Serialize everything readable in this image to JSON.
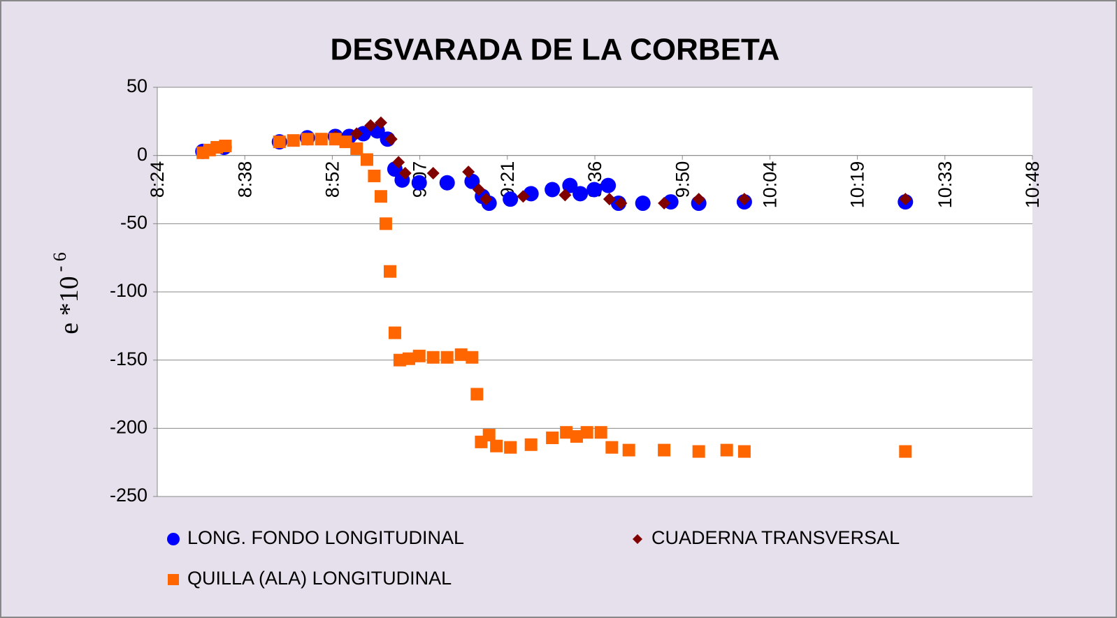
{
  "chart_data": {
    "type": "scatter",
    "title": "DESVARADA DE LA CORBETA",
    "y_label": "e *10",
    "y_label_superscript": "- 6",
    "xlim": [
      504,
      648
    ],
    "xticks": [
      {
        "value": 504,
        "label": "8:24"
      },
      {
        "value": 518.4,
        "label": "8:38"
      },
      {
        "value": 532.8,
        "label": "8:52"
      },
      {
        "value": 547.2,
        "label": "9:07"
      },
      {
        "value": 561.6,
        "label": "9:21"
      },
      {
        "value": 576,
        "label": "9:36"
      },
      {
        "value": 590.4,
        "label": "9:50"
      },
      {
        "value": 604.8,
        "label": "10:04"
      },
      {
        "value": 619.2,
        "label": "10:19"
      },
      {
        "value": 633.6,
        "label": "10:33"
      },
      {
        "value": 648,
        "label": "10:48"
      }
    ],
    "ylim": [
      -250,
      50
    ],
    "yticks": [
      -250,
      -200,
      -150,
      -100,
      -50,
      0,
      50
    ],
    "grid": true,
    "series": [
      {
        "name": "LONG. FONDO LONGITUDINAL",
        "color": "#0000ff",
        "marker": "circle",
        "x": [
          511.5,
          515,
          524.1,
          528.7,
          533.3,
          535.6,
          537.9,
          540.2,
          541.9,
          543.1,
          544.3,
          547.1,
          551.7,
          555.8,
          557.5,
          558.6,
          562.1,
          565.5,
          569,
          571.9,
          573.6,
          575.9,
          578.2,
          579.9,
          583.9,
          588.5,
          593.1,
          600.6,
          627.1
        ],
        "values": [
          3,
          6,
          10,
          13,
          14,
          14,
          16,
          18,
          12,
          -10,
          -18,
          -20,
          -20,
          -19,
          -30,
          -35,
          -32,
          -28,
          -25,
          -22,
          -28,
          -25,
          -22,
          -35,
          -35,
          -34,
          -35,
          -34,
          -34
        ]
      },
      {
        "name": "CUADERNA TRANSVERSAL",
        "color": "#800000",
        "marker": "diamond",
        "x": [
          533.3,
          536.8,
          539.1,
          540.8,
          542.5,
          543.7,
          544.8,
          549.4,
          555.2,
          556.9,
          558.1,
          564.2,
          571.1,
          578.4,
          580.3,
          587.4,
          593.1,
          600.6,
          627.1
        ],
        "values": [
          14,
          16,
          22,
          24,
          12,
          -5,
          -13,
          -13,
          -12,
          -25,
          -32,
          -30,
          -29,
          -32,
          -35,
          -35,
          -32,
          -32,
          -32
        ]
      },
      {
        "name": "QUILLA (ALA) LONGITUDINAL",
        "color": "#ff6600",
        "marker": "square",
        "x": [
          511.5,
          512.6,
          513.8,
          515.2,
          524.1,
          526.4,
          528.7,
          531,
          533.3,
          535,
          536.8,
          538.5,
          539.7,
          540.8,
          541.6,
          542.3,
          543.1,
          543.9,
          545.4,
          547.1,
          549.4,
          551.7,
          554,
          555.8,
          556.6,
          557.3,
          558.6,
          559.8,
          562.1,
          565.5,
          569,
          571.3,
          573,
          574.7,
          577,
          578.8,
          581.6,
          587.4,
          593.1,
          597.7,
          600.6,
          627.1
        ],
        "values": [
          2,
          4,
          6,
          7,
          10,
          11,
          12,
          12,
          12,
          10,
          5,
          -3,
          -15,
          -30,
          -50,
          -85,
          -130,
          -150,
          -149,
          -147,
          -148,
          -148,
          -146,
          -148,
          -175,
          -210,
          -205,
          -213,
          -214,
          -212,
          -207,
          -203,
          -206,
          -203,
          -203,
          -214,
          -216,
          -216,
          -217,
          -216,
          -217,
          -217
        ]
      }
    ]
  }
}
